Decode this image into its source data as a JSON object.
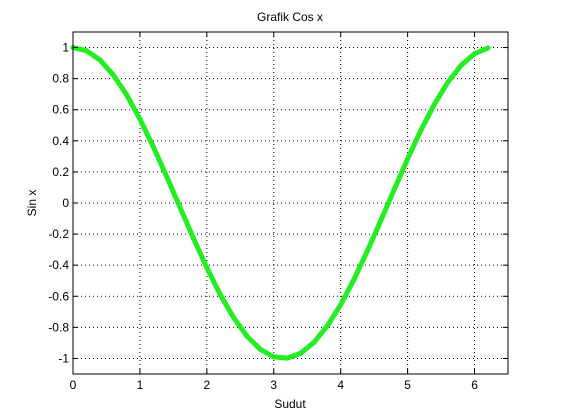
{
  "chart_data": {
    "type": "line",
    "title": "Grafik Cos x",
    "xlabel": "Sudut",
    "ylabel": "Sin x",
    "xlim": [
      0,
      6.5
    ],
    "ylim": [
      -1.1,
      1.1
    ],
    "grid": true,
    "grid_style": "dotted",
    "x_ticks": [
      0,
      1,
      2,
      3,
      4,
      5,
      6
    ],
    "x_tick_labels": [
      "0",
      "1",
      "2",
      "3",
      "4",
      "5",
      "6"
    ],
    "y_ticks": [
      1,
      0.8,
      0.6,
      0.4,
      0.2,
      0,
      -0.2,
      -0.4,
      -0.6,
      -0.8,
      -1
    ],
    "y_tick_labels": [
      "1",
      "0.8",
      "0.6",
      "0.4",
      "0.2",
      "0",
      "-0.2",
      "-0.4",
      "-0.6",
      "-0.8",
      "-1"
    ],
    "series": [
      {
        "color": "#22ee22",
        "x": [
          0.0,
          0.2,
          0.4,
          0.6,
          0.8,
          1.0,
          1.2,
          1.4,
          1.6,
          1.8,
          2.0,
          2.2,
          2.4,
          2.6,
          2.8,
          3.0,
          3.2,
          3.4,
          3.6,
          3.8,
          4.0,
          4.2,
          4.4,
          4.6,
          4.8,
          5.0,
          5.2,
          5.4,
          5.6,
          5.8,
          6.0,
          6.2
        ],
        "y": [
          1.0,
          0.98,
          0.921,
          0.825,
          0.697,
          0.54,
          0.362,
          0.17,
          -0.029,
          -0.227,
          -0.416,
          -0.589,
          -0.737,
          -0.857,
          -0.942,
          -0.99,
          -0.998,
          -0.967,
          -0.897,
          -0.791,
          -0.654,
          -0.49,
          -0.307,
          -0.112,
          0.087,
          0.284,
          0.469,
          0.635,
          0.776,
          0.886,
          0.96,
          0.997
        ]
      }
    ]
  }
}
